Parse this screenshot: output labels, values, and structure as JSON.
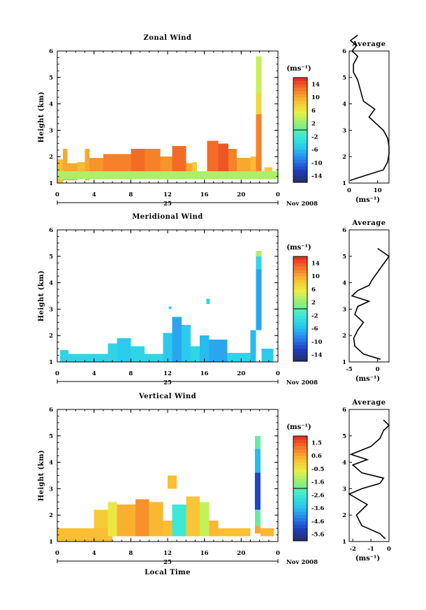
{
  "figure": {
    "time_label": "Local Time",
    "date_day": "25",
    "date_month": "Nov 2008",
    "y_label": "Height (km)",
    "unit_label": "(ms⁻¹)",
    "avg_unit": "(ms⁻¹)",
    "avg_title": "Average"
  },
  "chart_data": [
    {
      "type": "heatmap",
      "title": "Zonal Wind",
      "xlabel": "",
      "ylabel": "Height (km)",
      "x_ticks": [
        "0",
        "4",
        "8",
        "12",
        "16",
        "20",
        "0"
      ],
      "xlim_hours": [
        0,
        24
      ],
      "y_ticks": [
        "1",
        "2",
        "3",
        "4",
        "5",
        "6"
      ],
      "ylim_km": [
        1,
        6
      ],
      "colorbar": {
        "unit": "(ms⁻¹)",
        "ticks": [
          "14",
          "10",
          "6",
          "2",
          "-2",
          "-6",
          "-10",
          "-14"
        ],
        "range": [
          -16,
          16
        ]
      },
      "cells": [
        {
          "t": [
            0.0,
            0.6
          ],
          "h": [
            1.0,
            1.9
          ],
          "v": 9
        },
        {
          "t": [
            0.6,
            1.1
          ],
          "h": [
            1.1,
            2.3
          ],
          "v": 10
        },
        {
          "t": [
            1.1,
            2.2
          ],
          "h": [
            1.1,
            1.75
          ],
          "v": 10
        },
        {
          "t": [
            2.2,
            3.0
          ],
          "h": [
            1.15,
            1.8
          ],
          "v": 9
        },
        {
          "t": [
            3.0,
            3.5
          ],
          "h": [
            1.1,
            2.3
          ],
          "v": 10
        },
        {
          "t": [
            3.5,
            5.0
          ],
          "h": [
            1.2,
            1.95
          ],
          "v": 11
        },
        {
          "t": [
            5.0,
            6.2
          ],
          "h": [
            1.3,
            2.1
          ],
          "v": 12
        },
        {
          "t": [
            6.2,
            8.0
          ],
          "h": [
            1.3,
            2.1
          ],
          "v": 12
        },
        {
          "t": [
            8.0,
            9.5
          ],
          "h": [
            1.35,
            2.3
          ],
          "v": 13
        },
        {
          "t": [
            9.5,
            11.2
          ],
          "h": [
            1.3,
            2.3
          ],
          "v": 12
        },
        {
          "t": [
            11.2,
            12.5
          ],
          "h": [
            1.3,
            2.0
          ],
          "v": 11
        },
        {
          "t": [
            12.5,
            14.0
          ],
          "h": [
            1.35,
            2.4
          ],
          "v": 13
        },
        {
          "t": [
            14.0,
            14.7
          ],
          "h": [
            1.25,
            1.75
          ],
          "v": 10
        },
        {
          "t": [
            14.7,
            15.2
          ],
          "h": [
            1.3,
            1.8
          ],
          "v": 8
        },
        {
          "t": [
            16.3,
            17.5
          ],
          "h": [
            1.35,
            2.6
          ],
          "v": 13
        },
        {
          "t": [
            17.5,
            18.6
          ],
          "h": [
            1.3,
            2.5
          ],
          "v": 14
        },
        {
          "t": [
            18.6,
            19.5
          ],
          "h": [
            1.3,
            2.3
          ],
          "v": 12
        },
        {
          "t": [
            19.5,
            21.0
          ],
          "h": [
            1.25,
            1.95
          ],
          "v": 10
        },
        {
          "t": [
            21.0,
            21.6
          ],
          "h": [
            1.3,
            2.0
          ],
          "v": 9
        },
        {
          "t": [
            21.6,
            22.2
          ],
          "h": [
            1.45,
            3.6
          ],
          "v": 12
        },
        {
          "t": [
            21.6,
            22.2
          ],
          "h": [
            3.6,
            4.4
          ],
          "v": 7
        },
        {
          "t": [
            21.6,
            22.2
          ],
          "h": [
            4.4,
            5.8
          ],
          "v": 4
        },
        {
          "t": [
            22.5,
            23.4
          ],
          "h": [
            1.25,
            1.6
          ],
          "v": 8
        },
        {
          "t": [
            0.0,
            24.0
          ],
          "h": [
            1.15,
            1.45
          ],
          "v": 3
        }
      ],
      "average": {
        "title": "Average",
        "xlim": [
          0,
          14
        ],
        "x_ticks": [
          "0",
          "10"
        ],
        "unit": "(ms⁻¹)",
        "h": [
          1.1,
          1.3,
          1.5,
          1.8,
          2.1,
          2.4,
          2.7,
          3.0,
          3.2,
          3.5,
          3.8,
          4.1,
          4.5,
          4.9,
          5.2,
          5.5,
          5.8,
          6.0,
          6.2,
          6.4,
          6.6
        ],
        "v": [
          0.3,
          6,
          12,
          13.5,
          14,
          14,
          13.5,
          12,
          10,
          7,
          9,
          5,
          4,
          3,
          1.5,
          1.5,
          3,
          1,
          2.5,
          0.5,
          3
        ]
      }
    },
    {
      "type": "heatmap",
      "title": "Meridional Wind",
      "xlabel": "",
      "ylabel": "Height (km)",
      "x_ticks": [
        "0",
        "4",
        "8",
        "12",
        "16",
        "20",
        "0"
      ],
      "xlim_hours": [
        0,
        24
      ],
      "y_ticks": [
        "1",
        "2",
        "3",
        "4",
        "5",
        "6"
      ],
      "ylim_km": [
        1,
        6
      ],
      "colorbar": {
        "unit": "(ms⁻¹)",
        "ticks": [
          "14",
          "10",
          "6",
          "2",
          "-2",
          "-6",
          "-10",
          "-14"
        ],
        "range": [
          -16,
          16
        ]
      },
      "cells": [
        {
          "t": [
            0.3,
            1.2
          ],
          "h": [
            1.0,
            1.45
          ],
          "v": -4
        },
        {
          "t": [
            1.2,
            3.0
          ],
          "h": [
            1.0,
            1.3
          ],
          "v": -4
        },
        {
          "t": [
            3.0,
            5.5
          ],
          "h": [
            1.0,
            1.3
          ],
          "v": -4
        },
        {
          "t": [
            5.5,
            6.5
          ],
          "h": [
            1.0,
            1.7
          ],
          "v": -4
        },
        {
          "t": [
            6.5,
            8.0
          ],
          "h": [
            1.0,
            1.9
          ],
          "v": -5
        },
        {
          "t": [
            8.0,
            9.5
          ],
          "h": [
            1.0,
            1.6
          ],
          "v": -4
        },
        {
          "t": [
            9.5,
            11.5
          ],
          "h": [
            1.0,
            1.3
          ],
          "v": -4
        },
        {
          "t": [
            11.5,
            12.5
          ],
          "h": [
            1.0,
            2.1
          ],
          "v": -5
        },
        {
          "t": [
            12.5,
            13.5
          ],
          "h": [
            1.0,
            2.7
          ],
          "v": -7
        },
        {
          "t": [
            13.5,
            14.5
          ],
          "h": [
            1.0,
            2.4
          ],
          "v": -5
        },
        {
          "t": [
            14.5,
            15.5
          ],
          "h": [
            1.0,
            1.6
          ],
          "v": -4
        },
        {
          "t": [
            15.5,
            16.5
          ],
          "h": [
            1.0,
            2.0
          ],
          "v": -6
        },
        {
          "t": [
            16.5,
            18.5
          ],
          "h": [
            1.0,
            1.85
          ],
          "v": -7
        },
        {
          "t": [
            18.5,
            21.0
          ],
          "h": [
            1.0,
            1.35
          ],
          "v": -4
        },
        {
          "t": [
            21.0,
            21.6
          ],
          "h": [
            1.0,
            2.2
          ],
          "v": -6
        },
        {
          "t": [
            21.6,
            22.2
          ],
          "h": [
            2.2,
            4.5
          ],
          "v": -7
        },
        {
          "t": [
            21.6,
            22.2
          ],
          "h": [
            4.5,
            5.0
          ],
          "v": -4
        },
        {
          "t": [
            21.6,
            22.2
          ],
          "h": [
            5.0,
            5.2
          ],
          "v": 3
        },
        {
          "t": [
            22.2,
            23.5
          ],
          "h": [
            1.0,
            1.5
          ],
          "v": -5
        },
        {
          "t": [
            16.2,
            16.6
          ],
          "h": [
            3.2,
            3.4
          ],
          "v": -4
        },
        {
          "t": [
            12.1,
            12.4
          ],
          "h": [
            3.0,
            3.1
          ],
          "v": -4
        }
      ],
      "average": {
        "title": "Average",
        "xlim": [
          -5,
          2
        ],
        "x_ticks": [
          "-5",
          "0"
        ],
        "unit": "(ms⁻¹)",
        "h": [
          1.1,
          1.3,
          1.6,
          1.9,
          2.2,
          2.5,
          2.8,
          3.1,
          3.3,
          3.5,
          3.7,
          3.9,
          4.1,
          4.4,
          4.7,
          5.0,
          5.3
        ],
        "v": [
          0.5,
          -2.5,
          -4,
          -4.2,
          -3.5,
          -2.5,
          -4,
          -3.5,
          -1.5,
          -4.5,
          -3.5,
          -1.5,
          -1,
          0,
          1,
          2,
          0
        ]
      }
    },
    {
      "type": "heatmap",
      "title": "Vertical Wind",
      "xlabel": "Local Time",
      "ylabel": "Height (km)",
      "x_ticks": [
        "0",
        "4",
        "8",
        "12",
        "16",
        "20",
        "0"
      ],
      "xlim_hours": [
        0,
        24
      ],
      "y_ticks": [
        "1",
        "2",
        "3",
        "4",
        "5",
        "6"
      ],
      "ylim_km": [
        1,
        6
      ],
      "colorbar": {
        "unit": "(ms⁻¹)",
        "ticks": [
          "1.5",
          "0.6",
          "-0.5",
          "-1.6",
          "-2.6",
          "-3.6",
          "-4.6",
          "-5.6"
        ],
        "range": [
          -6.0,
          2.0
        ]
      },
      "cells": [
        {
          "t": [
            0.0,
            6.0
          ],
          "h": [
            1.0,
            1.5
          ],
          "v": 0.2
        },
        {
          "t": [
            4.0,
            5.5
          ],
          "h": [
            1.5,
            2.2
          ],
          "v": 0.0
        },
        {
          "t": [
            5.5,
            6.5
          ],
          "h": [
            1.2,
            2.5
          ],
          "v": -0.5
        },
        {
          "t": [
            6.5,
            8.5
          ],
          "h": [
            1.2,
            2.4
          ],
          "v": 0.4
        },
        {
          "t": [
            8.5,
            10.0
          ],
          "h": [
            1.2,
            2.6
          ],
          "v": 0.8
        },
        {
          "t": [
            10.0,
            11.5
          ],
          "h": [
            1.2,
            2.5
          ],
          "v": 0.3
        },
        {
          "t": [
            11.5,
            12.5
          ],
          "h": [
            1.2,
            1.8
          ],
          "v": 0.2
        },
        {
          "t": [
            12.5,
            14.0
          ],
          "h": [
            1.2,
            2.4
          ],
          "v": -2.5
        },
        {
          "t": [
            14.0,
            15.5
          ],
          "h": [
            1.2,
            2.7
          ],
          "v": 0.1
        },
        {
          "t": [
            15.5,
            16.5
          ],
          "h": [
            1.2,
            2.5
          ],
          "v": -1.0
        },
        {
          "t": [
            16.5,
            17.5
          ],
          "h": [
            1.2,
            1.8
          ],
          "v": 0.3
        },
        {
          "t": [
            17.5,
            21.0
          ],
          "h": [
            1.2,
            1.5
          ],
          "v": 0.2
        },
        {
          "t": [
            21.5,
            22.1
          ],
          "h": [
            1.3,
            1.6
          ],
          "v": 0.5
        },
        {
          "t": [
            21.5,
            22.1
          ],
          "h": [
            1.6,
            2.2
          ],
          "v": -2.0
        },
        {
          "t": [
            21.5,
            22.1
          ],
          "h": [
            2.2,
            3.6
          ],
          "v": -5.0
        },
        {
          "t": [
            21.5,
            22.1
          ],
          "h": [
            3.6,
            4.5
          ],
          "v": -3.5
        },
        {
          "t": [
            21.5,
            22.1
          ],
          "h": [
            4.5,
            5.0
          ],
          "v": -2.0
        },
        {
          "t": [
            22.1,
            23.6
          ],
          "h": [
            1.2,
            1.5
          ],
          "v": 0.3
        },
        {
          "t": [
            12.0,
            13.0
          ],
          "h": [
            3.0,
            3.5
          ],
          "v": 0.2
        }
      ],
      "average": {
        "title": "Average",
        "xlim": [
          -2.2,
          0
        ],
        "x_ticks": [
          "-2",
          "-1",
          "0"
        ],
        "unit": "(ms⁻¹)",
        "h": [
          1.1,
          1.3,
          1.6,
          2.0,
          2.4,
          2.8,
          3.0,
          3.2,
          3.4,
          3.6,
          3.9,
          4.1,
          4.3,
          4.6,
          4.9,
          5.2,
          5.4,
          5.6
        ],
        "v": [
          -0.2,
          -0.5,
          -1.5,
          -1.8,
          -1.2,
          -2.2,
          -1.5,
          -0.5,
          -0.3,
          -1.5,
          -2.0,
          -1.2,
          -2.1,
          -1.0,
          -0.5,
          -0.3,
          0.0,
          -0.3
        ]
      }
    }
  ]
}
